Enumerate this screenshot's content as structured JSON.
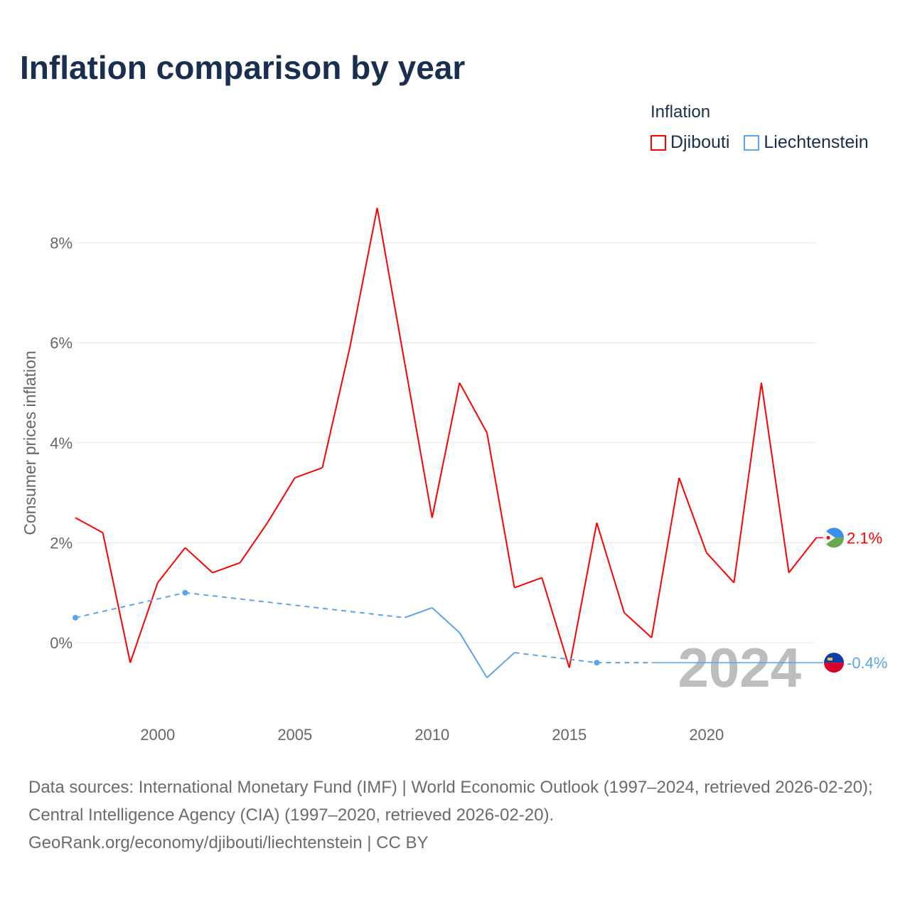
{
  "chart_data": {
    "type": "line",
    "title": "Inflation comparison by year",
    "legend_title": "Inflation",
    "ylabel": "Consumer prices inflation",
    "xlabel": "",
    "xlim": [
      1997,
      2024
    ],
    "ylim": [
      -1.4,
      9.0
    ],
    "x_ticks": [
      2000,
      2005,
      2010,
      2015,
      2020
    ],
    "y_ticks": [
      0,
      2,
      4,
      6,
      8
    ],
    "y_tick_labels": [
      "0%",
      "2%",
      "4%",
      "6%",
      "8%"
    ],
    "grid": true,
    "legend_position": "top-right",
    "year_watermark": "2024",
    "series": [
      {
        "name": "Djibouti",
        "color": "#ff0000",
        "end_label": "2.1%",
        "x": [
          1997,
          1998,
          1999,
          2000,
          2001,
          2002,
          2003,
          2004,
          2005,
          2006,
          2007,
          2008,
          2009,
          2010,
          2011,
          2012,
          2013,
          2014,
          2015,
          2016,
          2017,
          2018,
          2019,
          2020,
          2021,
          2022,
          2023,
          2024
        ],
        "values": [
          2.5,
          2.2,
          -0.4,
          1.2,
          1.9,
          1.4,
          1.6,
          2.4,
          3.3,
          3.5,
          5.9,
          8.7,
          5.6,
          2.5,
          5.2,
          4.2,
          1.1,
          1.3,
          -0.5,
          2.4,
          0.6,
          0.1,
          3.3,
          1.8,
          1.2,
          5.2,
          1.4,
          2.1
        ]
      },
      {
        "name": "Liechtenstein",
        "color": "#5aa5ea",
        "end_label": "-0.4%",
        "x": [
          1997,
          2001,
          2009,
          2010,
          2011,
          2012,
          2013,
          2016,
          2018
        ],
        "values": [
          0.5,
          1.0,
          0.5,
          0.7,
          0.2,
          -0.7,
          -0.2,
          -0.4,
          -0.4
        ]
      }
    ]
  },
  "source_lines": [
    "Data sources: International Monetary Fund (IMF) | World Economic Outlook (1997–2024, retrieved 2026-02-20); Central Intelligence Agency (CIA) (1997–2020, retrieved 2026-02-20).",
    "GeoRank.org/economy/djibouti/liechtenstein | CC BY"
  ]
}
